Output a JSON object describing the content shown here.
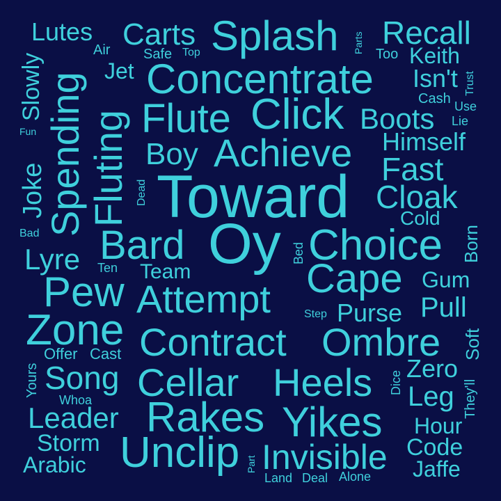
{
  "colors": {
    "background": "#0a0f45",
    "text": "#3fd0dc"
  },
  "words": [
    {
      "text": "Toward"
    },
    {
      "text": "Oy"
    },
    {
      "text": "Splash"
    },
    {
      "text": "Concentrate"
    },
    {
      "text": "Click"
    },
    {
      "text": "Flute"
    },
    {
      "text": "Achieve"
    },
    {
      "text": "Choice"
    },
    {
      "text": "Contract"
    },
    {
      "text": "Ombre"
    },
    {
      "text": "Cellar"
    },
    {
      "text": "Heels"
    },
    {
      "text": "Rakes"
    },
    {
      "text": "Yikes"
    },
    {
      "text": "Unclip"
    },
    {
      "text": "Invisible"
    },
    {
      "text": "Attempt"
    },
    {
      "text": "Zone"
    },
    {
      "text": "Pew"
    },
    {
      "text": "Cape"
    },
    {
      "text": "Bard"
    },
    {
      "text": "Recall"
    },
    {
      "text": "Carts"
    },
    {
      "text": "Boots"
    },
    {
      "text": "Boy"
    },
    {
      "text": "Fast"
    },
    {
      "text": "Cloak"
    },
    {
      "text": "Song"
    },
    {
      "text": "Leader"
    },
    {
      "text": "Himself"
    },
    {
      "text": "Purse"
    },
    {
      "text": "Pull"
    },
    {
      "text": "Lutes"
    },
    {
      "text": "Keith"
    },
    {
      "text": "Isn't"
    },
    {
      "text": "Lyre"
    },
    {
      "text": "Leg"
    },
    {
      "text": "Zero"
    },
    {
      "text": "Storm"
    },
    {
      "text": "Arabic"
    },
    {
      "text": "Hour"
    },
    {
      "text": "Code"
    },
    {
      "text": "Jaffe"
    },
    {
      "text": "Team"
    },
    {
      "text": "Jet"
    },
    {
      "text": "Gum"
    },
    {
      "text": "Cold"
    },
    {
      "text": "Cast"
    },
    {
      "text": "Offer"
    },
    {
      "text": "Safe"
    },
    {
      "text": "Air"
    },
    {
      "text": "Top"
    },
    {
      "text": "Too"
    },
    {
      "text": "Cash"
    },
    {
      "text": "Use"
    },
    {
      "text": "Lie"
    },
    {
      "text": "Ten"
    },
    {
      "text": "Whoa"
    },
    {
      "text": "Step"
    },
    {
      "text": "Land"
    },
    {
      "text": "Deal"
    },
    {
      "text": "Alone"
    },
    {
      "text": "Bad"
    },
    {
      "text": "Fun"
    },
    {
      "text": "Spending"
    },
    {
      "text": "Fluting"
    },
    {
      "text": "Slowly"
    },
    {
      "text": "Joke"
    },
    {
      "text": "Yours"
    },
    {
      "text": "Soft"
    },
    {
      "text": "Born"
    },
    {
      "text": "They'll"
    },
    {
      "text": "Dice"
    },
    {
      "text": "Bed"
    },
    {
      "text": "Dead"
    },
    {
      "text": "Part"
    },
    {
      "text": "Parts"
    },
    {
      "text": "Trust"
    }
  ]
}
